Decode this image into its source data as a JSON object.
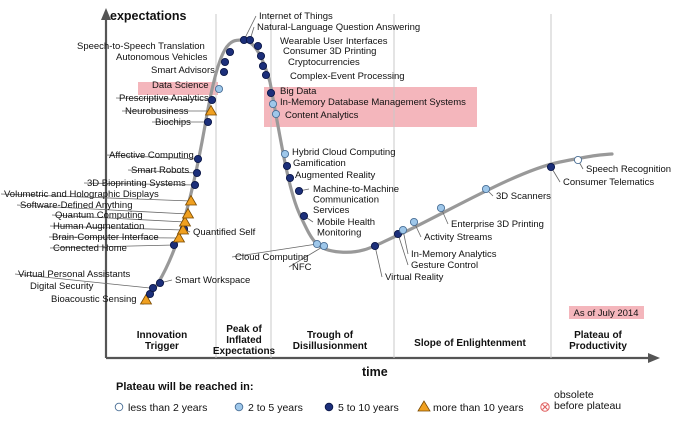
{
  "chart_data": {
    "type": "scatter",
    "title": "",
    "xlabel": "time",
    "ylabel": "expectations",
    "as_of": "As of July 2014",
    "phases": [
      {
        "name": "Innovation\nTrigger"
      },
      {
        "name": "Peak of\nInflated\nExpectations"
      },
      {
        "name": "Trough of\nDisillusionment"
      },
      {
        "name": "Slope of Enlightenment"
      },
      {
        "name": "Plateau of\nProductivity"
      }
    ],
    "legend": {
      "title": "Plateau will be reached in:",
      "items": [
        {
          "key": "lt2",
          "label": "less than 2 years",
          "color": "#ffffff"
        },
        {
          "key": "2to5",
          "label": "2 to 5 years",
          "color": "#9ec7ea"
        },
        {
          "key": "5to10",
          "label": "5 to 10 years",
          "color": "#1c2f7a"
        },
        {
          "key": "gt10",
          "label": "more than 10 years",
          "color": "#f0a020"
        },
        {
          "key": "obsolete",
          "label": "obsolete\nbefore plateau",
          "color": "#e06060"
        }
      ]
    },
    "technologies": [
      {
        "name": "Bioacoustic Sensing",
        "category": "gt10"
      },
      {
        "name": "Digital Security",
        "category": "5to10"
      },
      {
        "name": "Virtual Personal Assistants",
        "category": "5to10"
      },
      {
        "name": "Smart Workspace",
        "category": "5to10"
      },
      {
        "name": "Connected Home",
        "category": "5to10"
      },
      {
        "name": "Brain-Computer Interface",
        "category": "gt10"
      },
      {
        "name": "Quantified Self",
        "category": "5to10"
      },
      {
        "name": "Human Augmentation",
        "category": "gt10"
      },
      {
        "name": "Quantum Computing",
        "category": "gt10"
      },
      {
        "name": "Software-Defined Anything",
        "category": "gt10"
      },
      {
        "name": "Volumetric and Holographic Displays",
        "category": "gt10"
      },
      {
        "name": "3D Bioprinting Systems",
        "category": "5to10"
      },
      {
        "name": "Smart Robots",
        "category": "5to10"
      },
      {
        "name": "Affective Computing",
        "category": "5to10"
      },
      {
        "name": "Biochips",
        "category": "5to10"
      },
      {
        "name": "Neurobusiness",
        "category": "gt10"
      },
      {
        "name": "Prescriptive Analytics",
        "category": "5to10"
      },
      {
        "name": "Data Science",
        "category": "2to5"
      },
      {
        "name": "Smart Advisors",
        "category": "5to10"
      },
      {
        "name": "Autonomous Vehicles",
        "category": "5to10"
      },
      {
        "name": "Speech-to-Speech Translation",
        "category": "5to10"
      },
      {
        "name": "Internet of Things",
        "category": "5to10"
      },
      {
        "name": "Natural-Language Question Answering",
        "category": "5to10"
      },
      {
        "name": "Wearable User Interfaces",
        "category": "5to10"
      },
      {
        "name": "Consumer 3D Printing",
        "category": "5to10"
      },
      {
        "name": "Cryptocurrencies",
        "category": "5to10"
      },
      {
        "name": "Complex-Event Processing",
        "category": "5to10"
      },
      {
        "name": "Big Data",
        "category": "5to10"
      },
      {
        "name": "In-Memory Database Management Systems",
        "category": "2to5"
      },
      {
        "name": "Content Analytics",
        "category": "2to5"
      },
      {
        "name": "Hybrid Cloud Computing",
        "category": "2to5"
      },
      {
        "name": "Gamification",
        "category": "5to10"
      },
      {
        "name": "Augmented Reality",
        "category": "5to10"
      },
      {
        "name": "Machine-to-Machine\nCommunication\nServices",
        "category": "5to10"
      },
      {
        "name": "Mobile Health\nMonitoring",
        "category": "5to10"
      },
      {
        "name": "Cloud Computing",
        "category": "2to5"
      },
      {
        "name": "NFC",
        "category": "2to5"
      },
      {
        "name": "Virtual Reality",
        "category": "5to10"
      },
      {
        "name": "Gesture Control",
        "category": "5to10"
      },
      {
        "name": "In-Memory Analytics",
        "category": "2to5"
      },
      {
        "name": "Activity  Streams",
        "category": "2to5"
      },
      {
        "name": "Enterprise 3D Printing",
        "category": "2to5"
      },
      {
        "name": "3D Scanners",
        "category": "2to5"
      },
      {
        "name": "Consumer Telematics",
        "category": "5to10"
      },
      {
        "name": "Speech Recognition",
        "category": "lt2"
      }
    ]
  }
}
